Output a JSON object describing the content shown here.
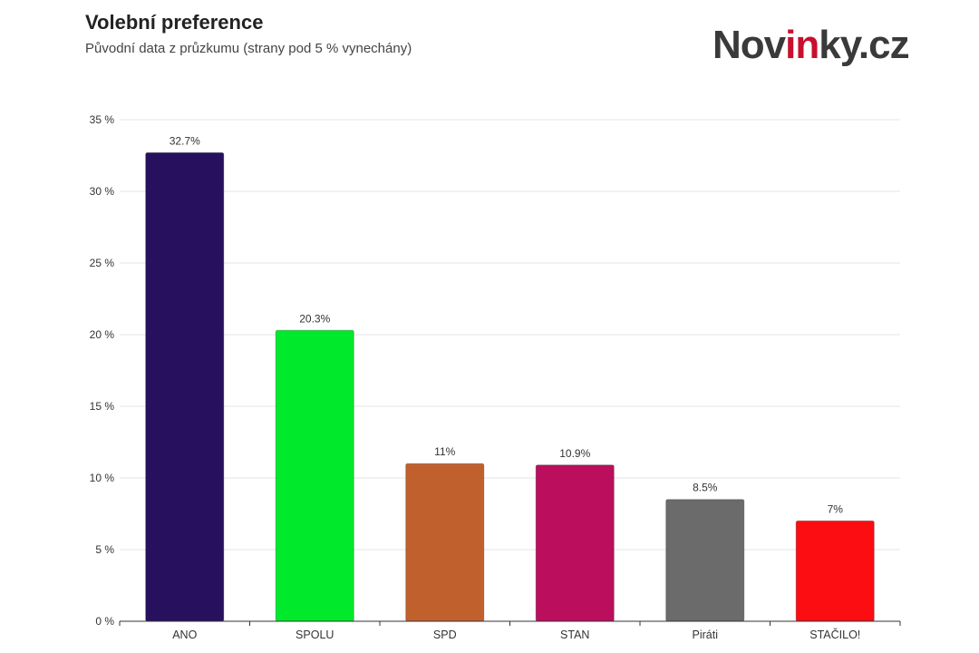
{
  "header": {
    "title": "Volební preference",
    "subtitle": "Původní data z průzkumu (strany pod 5 % vynechány)"
  },
  "logo": {
    "text_before": "Nov",
    "text_accent": "in",
    "text_after": "ky.cz",
    "color": "#3a3a3a",
    "accent_color": "#c8102e"
  },
  "chart_data": {
    "type": "bar",
    "title": "Volební preference",
    "subtitle": "Původní data z průzkumu (strany pod 5 % vynechány)",
    "categories": [
      "ANO",
      "SPOLU",
      "SPD",
      "STAN",
      "Piráti",
      "STAČILO!"
    ],
    "values": [
      32.7,
      20.3,
      11,
      10.9,
      8.5,
      7
    ],
    "value_labels": [
      "32.7%",
      "20.3%",
      "11%",
      "10.9%",
      "8.5%",
      "7%"
    ],
    "colors": [
      "#27105e",
      "#00ea2b",
      "#c0612d",
      "#bb0f5e",
      "#6b6b6b",
      "#fb0d12"
    ],
    "ylim": [
      0,
      35
    ],
    "yticks": [
      0,
      5,
      10,
      15,
      20,
      25,
      30,
      35
    ],
    "ytick_labels": [
      "0 %",
      "5 %",
      "10 %",
      "15 %",
      "20 %",
      "25 %",
      "30 %",
      "35 %"
    ],
    "xlabel": "",
    "ylabel": "",
    "grid": true,
    "legend": false
  }
}
